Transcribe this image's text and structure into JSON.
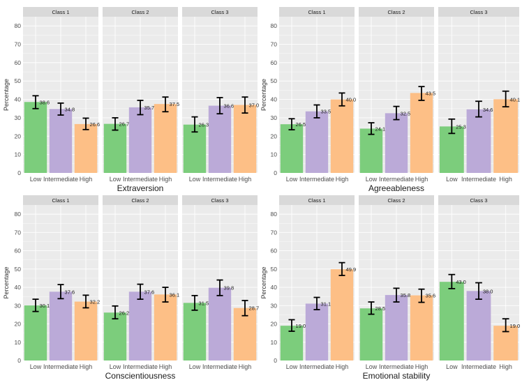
{
  "chart_data": [
    {
      "type": "bar",
      "title": "Extraversion",
      "ylabel": "Percentage",
      "ylim": [
        0,
        85
      ],
      "yticks": [
        "0",
        "10",
        "20",
        "30",
        "40",
        "50",
        "60",
        "70",
        "80"
      ],
      "categories": [
        "Low",
        "Intermediate",
        "High"
      ],
      "panels": [
        {
          "name": "Class 1",
          "values": [
            38.6,
            34.8,
            26.6
          ],
          "labels": [
            "38.6",
            "34.8",
            "26.6"
          ],
          "err_low": [
            35.0,
            31.5,
            23.6
          ],
          "err_high": [
            42.0,
            38.0,
            29.8
          ]
        },
        {
          "name": "Class 2",
          "values": [
            26.7,
            35.7,
            37.5
          ],
          "labels": [
            "26.7",
            "35.7",
            "37.5"
          ],
          "err_low": [
            23.3,
            31.7,
            33.3
          ],
          "err_high": [
            30.0,
            39.5,
            41.3
          ]
        },
        {
          "name": "Class 3",
          "values": [
            26.3,
            36.6,
            37.0
          ],
          "labels": [
            "26.3",
            "36.6",
            "37.0"
          ],
          "err_low": [
            22.3,
            32.2,
            32.6
          ],
          "err_high": [
            30.5,
            41.0,
            41.3
          ]
        }
      ]
    },
    {
      "type": "bar",
      "title": "Agreeableness",
      "ylabel": "Percentage",
      "ylim": [
        0,
        85
      ],
      "yticks": [
        "0",
        "10",
        "20",
        "30",
        "40",
        "50",
        "60",
        "70",
        "80"
      ],
      "categories": [
        "Low",
        "Intermediate",
        "High"
      ],
      "panels": [
        {
          "name": "Class 1",
          "values": [
            26.5,
            33.5,
            40.0
          ],
          "labels": [
            "26.5",
            "33.5",
            "40.0"
          ],
          "err_low": [
            23.5,
            30.0,
            36.5
          ],
          "err_high": [
            29.5,
            37.0,
            43.5
          ]
        },
        {
          "name": "Class 2",
          "values": [
            24.1,
            32.5,
            43.5
          ],
          "labels": [
            "24.1",
            "32.5",
            "43.5"
          ],
          "err_low": [
            21.0,
            29.0,
            39.5
          ],
          "err_high": [
            27.3,
            36.2,
            47.0
          ]
        },
        {
          "name": "Class 3",
          "values": [
            25.3,
            34.6,
            40.1
          ],
          "labels": [
            "25.3",
            "34.6",
            "40.1"
          ],
          "err_low": [
            21.5,
            30.5,
            36.0
          ],
          "err_high": [
            29.3,
            39.0,
            44.5
          ]
        }
      ]
    },
    {
      "type": "bar",
      "title": "Conscientiousness",
      "ylabel": "Percentage",
      "ylim": [
        0,
        85
      ],
      "yticks": [
        "0",
        "10",
        "20",
        "30",
        "40",
        "50",
        "60",
        "70",
        "80"
      ],
      "categories": [
        "Low",
        "Intermediate",
        "High"
      ],
      "panels": [
        {
          "name": "Class 1",
          "values": [
            30.1,
            37.6,
            32.2
          ],
          "labels": [
            "30.1",
            "37.6",
            "32.2"
          ],
          "err_low": [
            26.8,
            33.8,
            28.8
          ],
          "err_high": [
            33.5,
            41.5,
            35.7
          ]
        },
        {
          "name": "Class 2",
          "values": [
            26.2,
            37.6,
            36.1
          ],
          "labels": [
            "26.2",
            "37.6",
            "36.1"
          ],
          "err_low": [
            22.8,
            33.5,
            32.0
          ],
          "err_high": [
            29.8,
            41.7,
            40.0
          ]
        },
        {
          "name": "Class 3",
          "values": [
            31.5,
            39.8,
            28.7
          ],
          "labels": [
            "31.5",
            "39.8",
            "28.7"
          ],
          "err_low": [
            27.5,
            35.5,
            24.5
          ],
          "err_high": [
            35.5,
            44.0,
            32.8
          ]
        }
      ]
    },
    {
      "type": "bar",
      "title": "Emotional stability",
      "ylabel": "Percentage",
      "ylim": [
        0,
        85
      ],
      "yticks": [
        "0",
        "10",
        "20",
        "30",
        "40",
        "50",
        "60",
        "70",
        "80"
      ],
      "categories": [
        "Low",
        "Intermediate",
        "High"
      ],
      "panels": [
        {
          "name": "Class 1",
          "values": [
            19.0,
            31.1,
            49.9
          ],
          "labels": [
            "19.0",
            "31.1",
            "49.9"
          ],
          "err_low": [
            16.0,
            27.8,
            46.5
          ],
          "err_high": [
            22.3,
            34.5,
            53.5
          ]
        },
        {
          "name": "Class 2",
          "values": [
            28.5,
            35.8,
            35.6
          ],
          "labels": [
            "28.5",
            "35.8",
            "35.6"
          ],
          "err_low": [
            25.3,
            32.0,
            31.8
          ],
          "err_high": [
            32.0,
            39.5,
            39.0
          ]
        },
        {
          "name": "Class 3",
          "values": [
            43.0,
            38.0,
            19.0
          ],
          "labels": [
            "43.0",
            "38.0",
            "19.0"
          ],
          "err_low": [
            39.3,
            33.5,
            15.8
          ],
          "err_high": [
            47.0,
            42.5,
            22.8
          ]
        }
      ]
    }
  ],
  "colors": {
    "low": "#7ccd7c",
    "intermediate": "#bbaad8",
    "high": "#fdbf86",
    "panel_bg": "#ebebeb",
    "strip_bg": "#d9d9d9",
    "grid": "#ffffff"
  }
}
